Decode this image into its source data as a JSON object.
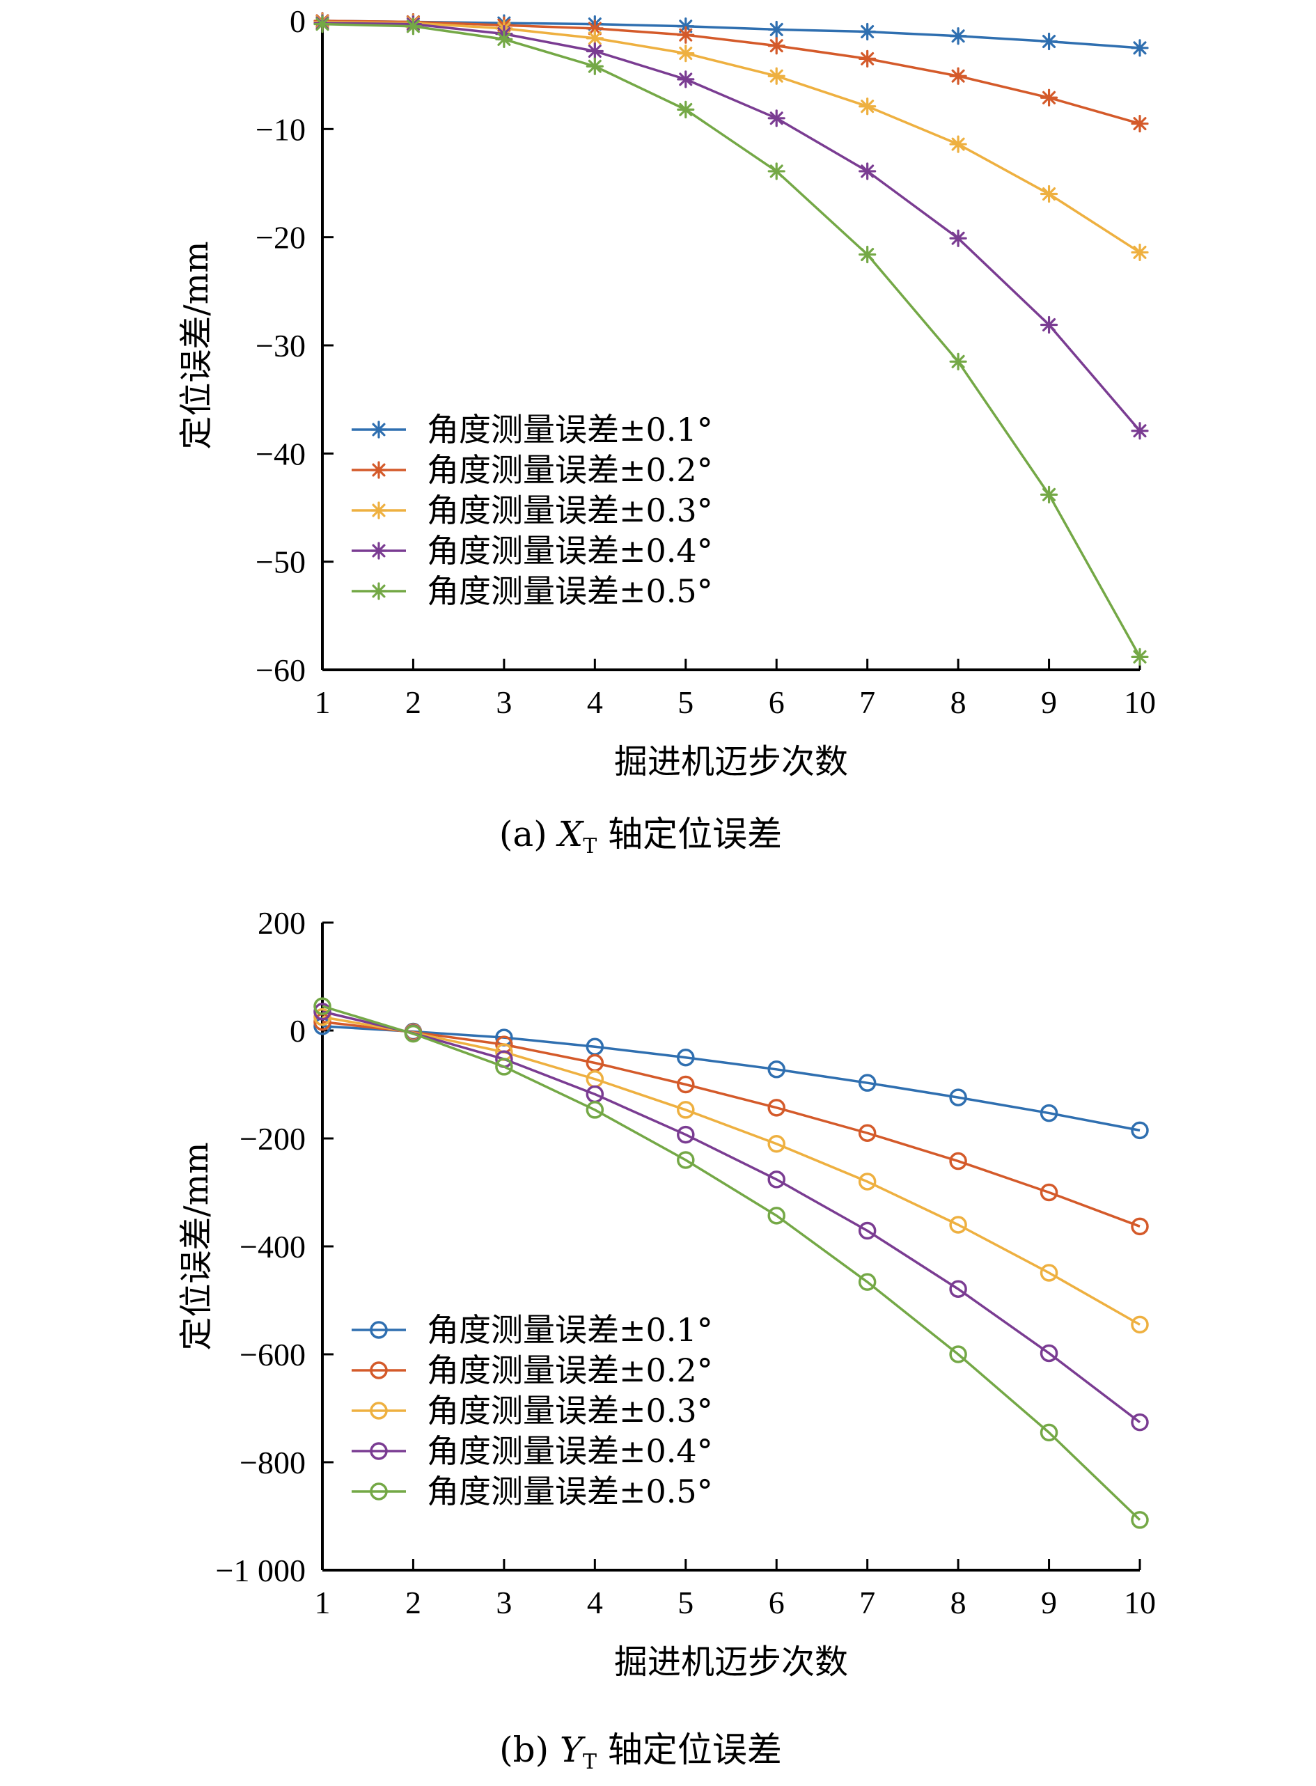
{
  "chart_data": [
    {
      "type": "line",
      "marker": "asterisk",
      "caption": {
        "prefix": "(a) ",
        "var": "X",
        "sub": "T",
        "suffix": " 轴定位误差"
      },
      "xlabel": "掘进机迈步次数",
      "ylabel": "定位误差/mm",
      "xlim": [
        1,
        10
      ],
      "ylim": [
        -60,
        0
      ],
      "xticks": [
        "1",
        "2",
        "3",
        "4",
        "5",
        "6",
        "7",
        "8",
        "9",
        "10"
      ],
      "yticks": [
        {
          "value": 0,
          "label": "0"
        },
        {
          "value": -10,
          "label": "−10"
        },
        {
          "value": -20,
          "label": "−20"
        },
        {
          "value": -30,
          "label": "−30"
        },
        {
          "value": -40,
          "label": "−40"
        },
        {
          "value": -50,
          "label": "−50"
        },
        {
          "value": -60,
          "label": "−60"
        }
      ],
      "legend_position": "lower-left",
      "x": [
        1,
        2,
        3,
        4,
        5,
        6,
        7,
        8,
        9,
        10
      ],
      "series": [
        {
          "name": "角度测量误差±0.1°",
          "color": "#2f6fb0",
          "values": [
            0,
            -0.1,
            -0.2,
            -0.3,
            -0.5,
            -0.8,
            -1.0,
            -1.4,
            -1.9,
            -2.5
          ]
        },
        {
          "name": "角度测量误差±0.2°",
          "color": "#d45a2a",
          "values": [
            0,
            -0.1,
            -0.4,
            -0.7,
            -1.3,
            -2.3,
            -3.5,
            -5.1,
            -7.1,
            -9.5
          ]
        },
        {
          "name": "角度测量误差±0.3°",
          "color": "#eeb040",
          "values": [
            -0.1,
            -0.2,
            -0.7,
            -1.6,
            -3.0,
            -5.1,
            -7.9,
            -11.4,
            -16.0,
            -21.4
          ]
        },
        {
          "name": "角度测量误差±0.4°",
          "color": "#7a3c92",
          "values": [
            -0.2,
            -0.3,
            -1.2,
            -2.8,
            -5.4,
            -9.0,
            -13.9,
            -20.1,
            -28.1,
            -37.9
          ]
        },
        {
          "name": "角度测量误差±0.5°",
          "color": "#74a846",
          "values": [
            -0.3,
            -0.5,
            -1.7,
            -4.2,
            -8.2,
            -13.9,
            -21.6,
            -31.5,
            -43.8,
            -58.8
          ]
        }
      ]
    },
    {
      "type": "line",
      "marker": "circle",
      "caption": {
        "prefix": "(b) ",
        "var": "Y",
        "sub": "T",
        "suffix": " 轴定位误差"
      },
      "xlabel": "掘进机迈步次数",
      "ylabel": "定位误差/mm",
      "xlim": [
        1,
        10
      ],
      "ylim": [
        -1000,
        200
      ],
      "xticks": [
        "1",
        "2",
        "3",
        "4",
        "5",
        "6",
        "7",
        "8",
        "9",
        "10"
      ],
      "yticks": [
        {
          "value": 200,
          "label": "200"
        },
        {
          "value": 0,
          "label": "0"
        },
        {
          "value": -200,
          "label": "−200"
        },
        {
          "value": -400,
          "label": "−400"
        },
        {
          "value": -600,
          "label": "−600"
        },
        {
          "value": -800,
          "label": "−800"
        },
        {
          "value": -1000,
          "label": "−1 000"
        }
      ],
      "legend_position": "lower-left",
      "x": [
        1,
        2,
        3,
        4,
        5,
        6,
        7,
        8,
        9,
        10
      ],
      "series": [
        {
          "name": "角度测量误差±0.1°",
          "color": "#2f6fb0",
          "values": [
            8,
            -2,
            -13,
            -30,
            -50,
            -72,
            -97,
            -124,
            -153,
            -185
          ]
        },
        {
          "name": "角度测量误差±0.2°",
          "color": "#d45a2a",
          "values": [
            16,
            -3,
            -26,
            -60,
            -100,
            -143,
            -190,
            -242,
            -300,
            -363
          ]
        },
        {
          "name": "角度测量误差±0.3°",
          "color": "#eeb040",
          "values": [
            25,
            -4,
            -40,
            -90,
            -147,
            -210,
            -280,
            -360,
            -449,
            -545
          ]
        },
        {
          "name": "角度测量误差±0.4°",
          "color": "#7a3c92",
          "values": [
            35,
            -5,
            -53,
            -118,
            -193,
            -276,
            -371,
            -479,
            -598,
            -726
          ]
        },
        {
          "name": "角度测量误差±0.5°",
          "color": "#74a846",
          "values": [
            45,
            -6,
            -67,
            -147,
            -240,
            -343,
            -466,
            -600,
            -745,
            -907
          ]
        }
      ]
    }
  ]
}
